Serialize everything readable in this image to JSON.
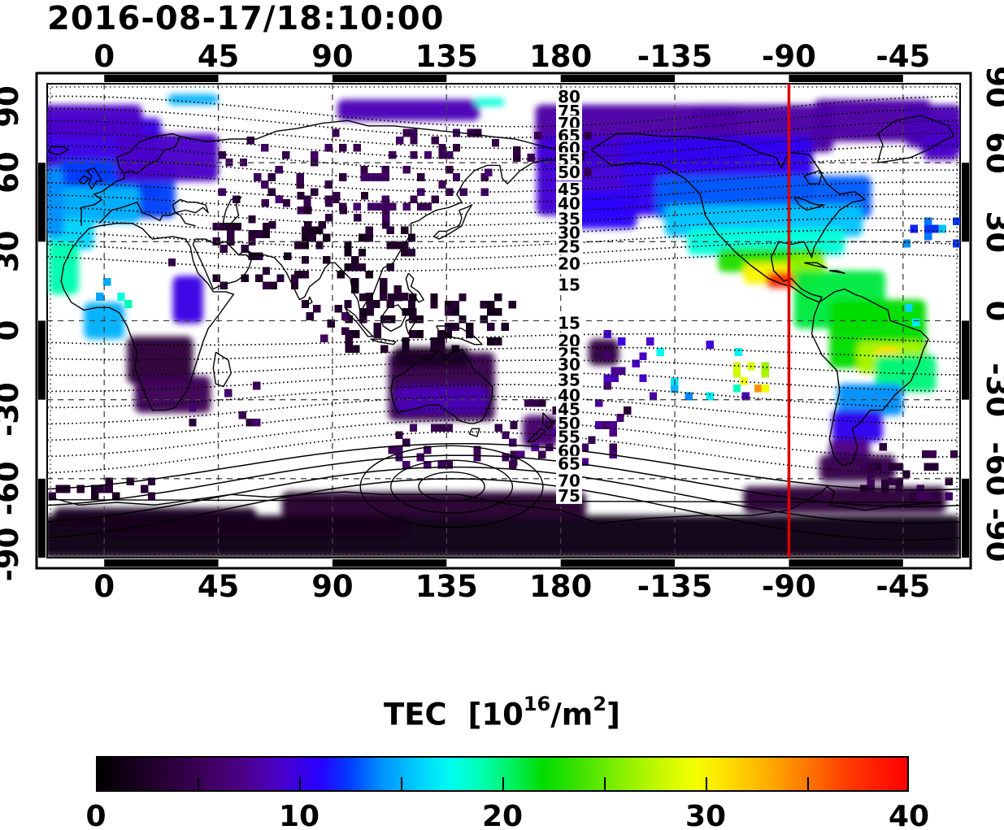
{
  "chart_data": {
    "type": "heatmap",
    "title": "2016-08-17/18:10:00",
    "projection": "equirectangular",
    "lon_range": [
      -22.5,
      337.5
    ],
    "lat_range": [
      -90,
      90
    ],
    "grid": {
      "lon_step": 45,
      "lat_step": 30,
      "style": "dashed"
    },
    "axes": {
      "top": [
        "0",
        "45",
        "90",
        "135",
        "180",
        "-135",
        "-90",
        "-45"
      ],
      "bottom": [
        "0",
        "45",
        "90",
        "135",
        "180",
        "-135",
        "-90",
        "-45"
      ],
      "left": [
        "90",
        "60",
        "30",
        "0",
        "-30",
        "-60",
        "-90"
      ],
      "right": [
        "90",
        "60",
        "30",
        "0",
        "-30",
        "-60",
        "-90"
      ],
      "lon_tick_values": [
        0,
        45,
        90,
        135,
        180,
        225,
        270,
        315
      ],
      "lat_tick_values": [
        90,
        60,
        30,
        0,
        -30,
        -60,
        -90
      ]
    },
    "red_line_lon": -90,
    "red_line_color": "#dd0000",
    "contour_labels": {
      "north": [
        [
          80,
          85
        ],
        [
          75,
          79.5
        ],
        [
          70,
          74.8
        ],
        [
          65,
          70.2
        ],
        [
          60,
          65.5
        ],
        [
          55,
          60.9
        ],
        [
          50,
          56.3
        ],
        [
          45,
          49.8
        ],
        [
          40,
          44.5
        ],
        [
          35,
          38.6
        ],
        [
          30,
          33.4
        ],
        [
          25,
          28.1
        ],
        [
          20,
          21.6
        ],
        [
          15,
          13.6
        ]
      ],
      "south": [
        [
          15,
          -0.9
        ],
        [
          20,
          -7.7
        ],
        [
          25,
          -12.7
        ],
        [
          30,
          -16.7
        ],
        [
          35,
          -22.6
        ],
        [
          40,
          -28.4
        ],
        [
          45,
          -33.7
        ],
        [
          50,
          -39.0
        ],
        [
          55,
          -44.2
        ],
        [
          60,
          -49.5
        ],
        [
          65,
          -54.4
        ],
        [
          70,
          -60.9
        ],
        [
          75,
          -66.5
        ]
      ]
    },
    "contours": {
      "values_north": [
        15,
        20,
        25,
        30,
        35,
        40,
        45,
        50,
        55,
        60,
        65,
        70,
        75,
        80
      ],
      "values_south": [
        15,
        20,
        25,
        30,
        35,
        40,
        45,
        50,
        55,
        60,
        65,
        70,
        75
      ],
      "style_north": "dotted",
      "south_solid_from": 60,
      "south_pole_ovals": [
        [
          13,
          5.5
        ],
        [
          24,
          10
        ],
        [
          36,
          15.5
        ]
      ]
    },
    "colorbar": {
      "title_base": "TEC  [10",
      "title_exp": "16",
      "title_mid": "/m",
      "title_exp2": "2",
      "title_close": "]",
      "range": [
        0,
        40
      ],
      "ticks": [
        "0",
        "10",
        "20",
        "30",
        "40"
      ],
      "tick_values": [
        0,
        10,
        20,
        30,
        40
      ],
      "minor_tick_values": [
        5,
        10,
        15,
        20,
        25,
        30,
        35
      ]
    },
    "colormap": [
      [
        0,
        "#000000"
      ],
      [
        3,
        "#250030"
      ],
      [
        5,
        "#3b0054"
      ],
      [
        7,
        "#4b0082"
      ],
      [
        9,
        "#4a00c8"
      ],
      [
        11,
        "#2800ff"
      ],
      [
        12.5,
        "#0040ff"
      ],
      [
        14,
        "#0090ff"
      ],
      [
        16,
        "#00d4ff"
      ],
      [
        17.5,
        "#00ffee"
      ],
      [
        19,
        "#00ffb0"
      ],
      [
        20.5,
        "#00f060"
      ],
      [
        22,
        "#00dd00"
      ],
      [
        24,
        "#44e300"
      ],
      [
        26,
        "#8cf000"
      ],
      [
        28,
        "#ccfa00"
      ],
      [
        29.5,
        "#f4ff00"
      ],
      [
        31,
        "#ffe000"
      ],
      [
        33,
        "#ffb000"
      ],
      [
        35,
        "#ff7800"
      ],
      [
        37,
        "#ff3c00"
      ],
      [
        40,
        "#ff0000"
      ]
    ],
    "regions_smooth": [
      [
        -5,
        62,
        55,
        30,
        10
      ],
      [
        5,
        50,
        46,
        22,
        12.5
      ],
      [
        -2,
        44,
        32,
        14,
        15
      ],
      [
        -13,
        33,
        18,
        12,
        16
      ],
      [
        -16,
        20,
        12,
        20,
        19
      ],
      [
        -20,
        45,
        8,
        26,
        14
      ],
      [
        25,
        62,
        40,
        18,
        9
      ],
      [
        -8,
        76,
        46,
        12,
        9
      ],
      [
        120,
        80,
        56,
        8,
        8.5
      ],
      [
        35,
        84,
        20,
        4,
        15
      ],
      [
        152,
        83,
        12,
        3,
        18
      ],
      [
        -150,
        70,
        80,
        24,
        8
      ],
      [
        -100,
        73,
        55,
        18,
        8
      ],
      [
        -57,
        76,
        46,
        16,
        8
      ],
      [
        -30,
        70,
        18,
        12,
        9
      ],
      [
        -172,
        55,
        35,
        30,
        9.5
      ],
      [
        -165,
        42,
        30,
        14,
        11
      ],
      [
        -118,
        55,
        75,
        30,
        10.5
      ],
      [
        -100,
        47,
        85,
        16,
        13
      ],
      [
        -100,
        38,
        78,
        12,
        15.5
      ],
      [
        -99,
        30,
        62,
        10,
        18
      ],
      [
        -97,
        23,
        42,
        9,
        23
      ],
      [
        -93,
        18,
        30,
        8,
        30
      ],
      [
        -90,
        15.5,
        18,
        6,
        38
      ],
      [
        -83,
        21,
        14,
        8,
        26
      ],
      [
        -70,
        8,
        36,
        22,
        21
      ],
      [
        -55,
        -5,
        38,
        26,
        22
      ],
      [
        -50,
        -14,
        26,
        12,
        27
      ],
      [
        -51,
        -13,
        10,
        6,
        31
      ],
      [
        -44,
        -20,
        24,
        14,
        20
      ],
      [
        -58,
        -30,
        26,
        12,
        14
      ],
      [
        -63,
        -40,
        20,
        12,
        10.5
      ],
      [
        -66,
        -49,
        16,
        8,
        7
      ],
      [
        -63,
        -56,
        30,
        10,
        4.5
      ],
      [
        0,
        0,
        16,
        14,
        15
      ],
      [
        33,
        8,
        12,
        18,
        10
      ],
      [
        22,
        -15,
        26,
        18,
        3.5
      ],
      [
        27,
        -28,
        30,
        14,
        5
      ],
      [
        133,
        -25,
        42,
        26,
        4.5
      ],
      [
        133,
        -30,
        36,
        10,
        8.5
      ],
      [
        129,
        -14,
        30,
        8,
        2.5
      ],
      [
        172,
        -42,
        14,
        12,
        6
      ],
      [
        -163,
        -12,
        12,
        10,
        4
      ],
      [
        -33,
        74,
        22,
        16,
        8.5
      ],
      [
        -30,
        66,
        14,
        10,
        9
      ],
      [
        157,
        -82,
        362,
        16,
        1.2
      ],
      [
        130,
        -70,
        120,
        10,
        3
      ],
      [
        -68,
        -68,
        80,
        10,
        3.5
      ],
      [
        20,
        -75,
        80,
        8,
        2
      ],
      [
        60,
        -78,
        120,
        8,
        1.8
      ]
    ],
    "regions_cells": [
      [
        45,
        42,
        150,
        72,
        5,
        1.5,
        0.16,
        1
      ],
      [
        40,
        12,
        75,
        38,
        3,
        1.2,
        0.2,
        2
      ],
      [
        75,
        5,
        120,
        35,
        2.5,
        1,
        0.26,
        3
      ],
      [
        95,
        -12,
        162,
        8,
        2.5,
        1,
        0.28,
        4
      ],
      [
        60,
        -8,
        95,
        5,
        4,
        1.5,
        0.1,
        5
      ],
      [
        160,
        -55,
        205,
        -30,
        5.5,
        2.5,
        0.22,
        6
      ],
      [
        215,
        -30,
        252,
        -10,
        13,
        5,
        0.12,
        7
      ],
      [
        248,
        -27,
        262,
        -18,
        27,
        9,
        0.3,
        8
      ],
      [
        298,
        -68,
        338,
        -56,
        4.2,
        1.3,
        0.3,
        9
      ],
      [
        150,
        55,
        190,
        70,
        5,
        1.5,
        0.16,
        10
      ],
      [
        112,
        -56,
        162,
        -40,
        5,
        1.5,
        0.18,
        11
      ],
      [
        62,
        35,
        110,
        48,
        4,
        1.3,
        0.2,
        12
      ],
      [
        -22,
        -68,
        25,
        -60,
        3,
        1,
        0.2,
        13
      ],
      [
        25,
        -40,
        60,
        -24,
        5,
        1.5,
        0.1,
        14
      ],
      [
        -20,
        5,
        10,
        18,
        17,
        3,
        0.12,
        15
      ],
      [
        197,
        -26,
        222,
        -6,
        8,
        2,
        0.22,
        16
      ],
      [
        0,
        18,
        35,
        30,
        4,
        1,
        0.05,
        17
      ],
      [
        315,
        28,
        338,
        38,
        14,
        3,
        0.15,
        18
      ],
      [
        319,
        16,
        325,
        20,
        26,
        4,
        0.25,
        19
      ],
      [
        313,
        -2,
        321,
        6,
        15,
        2,
        0.3,
        20
      ],
      [
        300,
        -52,
        338,
        -44,
        4.5,
        1,
        0.12,
        21
      ]
    ]
  }
}
